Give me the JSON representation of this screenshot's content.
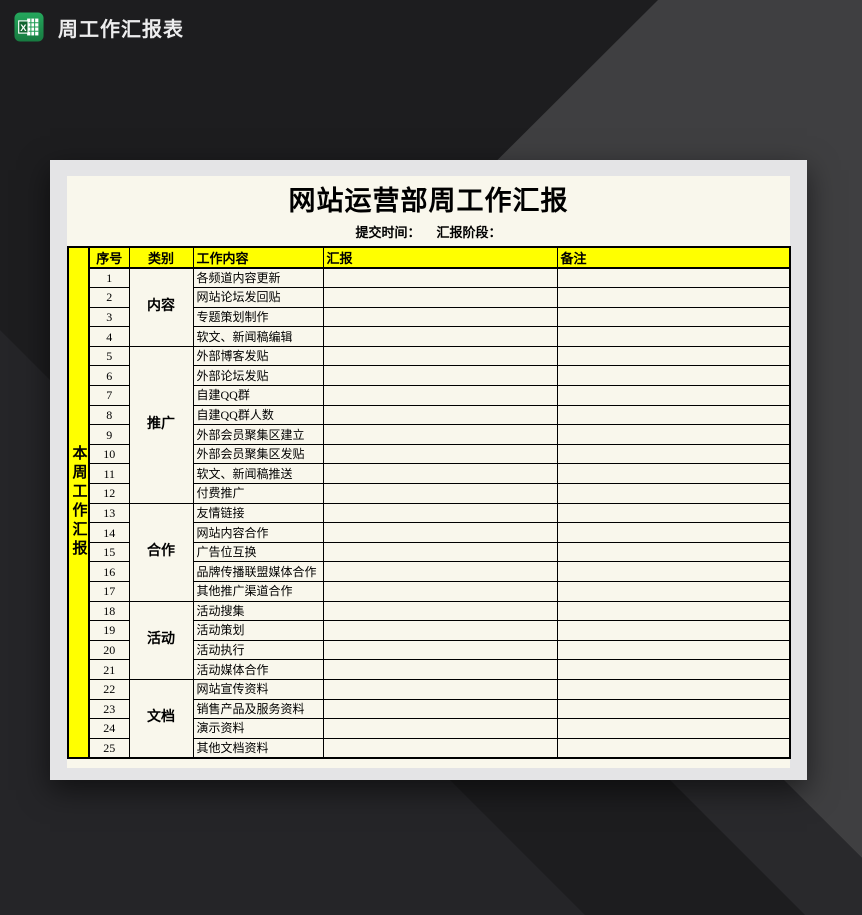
{
  "window": {
    "title": "周工作汇报表"
  },
  "colors": {
    "background_base": "#1d1d1f",
    "background_facet_light": "#3f3f41",
    "background_facet_mid": "#29292c",
    "background_facet_bottom_left": "#252528",
    "sheet_margin": "#e4e4e6",
    "paper": "#f9f7ec",
    "header_yellow": "#ffff00",
    "excel_green": "#1f9b53",
    "grid_line": "#000000",
    "titlebar_text": "#ededee"
  },
  "sheet": {
    "title": "网站运营部周工作汇报",
    "subtitle": {
      "submit_label": "提交时间：",
      "stage_label": "汇报阶段："
    },
    "side_label": "本周工作汇报",
    "columns": [
      "序号",
      "类别",
      "工作内容",
      "汇报",
      "备注"
    ],
    "groups": [
      {
        "label": "内容",
        "span": 4
      },
      {
        "label": "推广",
        "span": 8
      },
      {
        "label": "合作",
        "span": 5
      },
      {
        "label": "活动",
        "span": 4
      },
      {
        "label": "文档",
        "span": 4
      }
    ],
    "rows": [
      {
        "no": "1",
        "task": "各频道内容更新",
        "report": "",
        "remark": "",
        "group": 0
      },
      {
        "no": "2",
        "task": "网站论坛发回贴",
        "report": "",
        "remark": ""
      },
      {
        "no": "3",
        "task": "专题策划制作",
        "report": "",
        "remark": ""
      },
      {
        "no": "4",
        "task": "软文、新闻稿编辑",
        "report": "",
        "remark": ""
      },
      {
        "no": "5",
        "task": "外部博客发贴",
        "report": "",
        "remark": "",
        "group": 1
      },
      {
        "no": "6",
        "task": "外部论坛发贴",
        "report": "",
        "remark": ""
      },
      {
        "no": "7",
        "task": "自建QQ群",
        "report": "",
        "remark": ""
      },
      {
        "no": "8",
        "task": "自建QQ群人数",
        "report": "",
        "remark": ""
      },
      {
        "no": "9",
        "task": "外部会员聚集区建立",
        "report": "",
        "remark": ""
      },
      {
        "no": "10",
        "task": "外部会员聚集区发贴",
        "report": "",
        "remark": ""
      },
      {
        "no": "11",
        "task": "软文、新闻稿推送",
        "report": "",
        "remark": ""
      },
      {
        "no": "12",
        "task": "付费推广",
        "report": "",
        "remark": ""
      },
      {
        "no": "13",
        "task": "友情链接",
        "report": "",
        "remark": "",
        "group": 2
      },
      {
        "no": "14",
        "task": "网站内容合作",
        "report": "",
        "remark": ""
      },
      {
        "no": "15",
        "task": "广告位互换",
        "report": "",
        "remark": ""
      },
      {
        "no": "16",
        "task": "品牌传播联盟媒体合作",
        "report": "",
        "remark": ""
      },
      {
        "no": "17",
        "task": "其他推广渠道合作",
        "report": "",
        "remark": ""
      },
      {
        "no": "18",
        "task": "活动搜集",
        "report": "",
        "remark": "",
        "group": 3
      },
      {
        "no": "19",
        "task": "活动策划",
        "report": "",
        "remark": ""
      },
      {
        "no": "20",
        "task": "活动执行",
        "report": "",
        "remark": ""
      },
      {
        "no": "21",
        "task": "活动媒体合作",
        "report": "",
        "remark": ""
      },
      {
        "no": "22",
        "task": "网站宣传资料",
        "report": "",
        "remark": "",
        "group": 4
      },
      {
        "no": "23",
        "task": "销售产品及服务资料",
        "report": "",
        "remark": ""
      },
      {
        "no": "24",
        "task": "演示资料",
        "report": "",
        "remark": ""
      },
      {
        "no": "25",
        "task": "其他文档资料",
        "report": "",
        "remark": ""
      }
    ]
  }
}
